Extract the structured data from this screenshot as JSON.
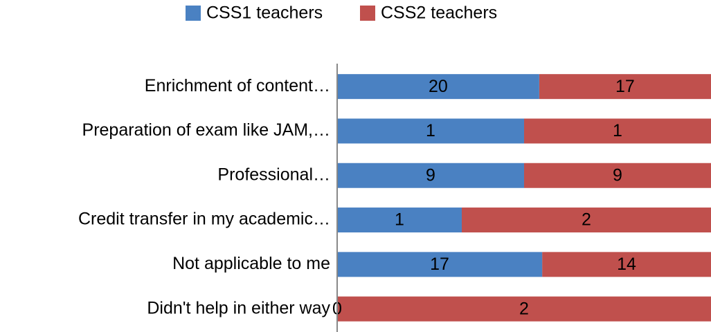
{
  "chart_data": {
    "type": "bar",
    "orientation": "horizontal",
    "stacking": "percent",
    "categories": [
      "Enrichment of content…",
      "Preparation of exam like JAM,…",
      "Professional…",
      "Credit transfer in my academic…",
      "Not applicable to me",
      "Didn't help in either way"
    ],
    "series": [
      {
        "name": "CSS1 teachers",
        "color": "#4a81c2",
        "values": [
          20,
          1,
          9,
          1,
          17,
          0
        ]
      },
      {
        "name": "CSS2 teachers",
        "color": "#c0504d",
        "values": [
          17,
          1,
          9,
          2,
          14,
          2
        ]
      }
    ],
    "legend": "top",
    "data_labels": true
  }
}
